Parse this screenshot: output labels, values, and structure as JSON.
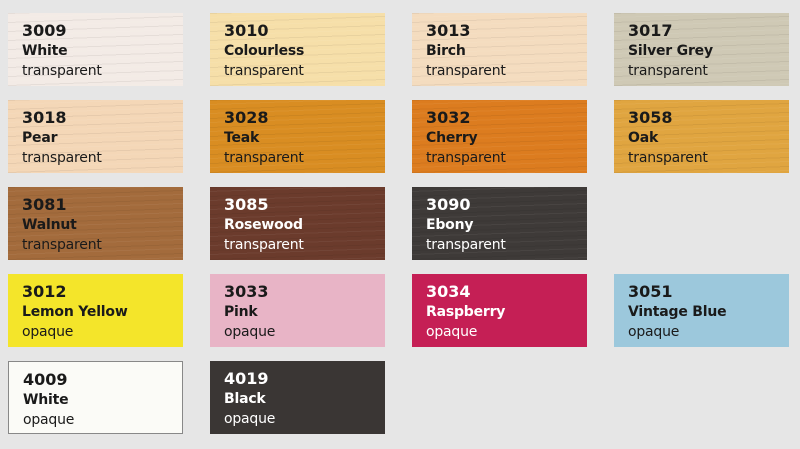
{
  "background": "#e6e6e6",
  "swatches": [
    {
      "code": "3009",
      "name": "White",
      "type": "transparent",
      "color": "#f3ebe6",
      "text": "#1a1a1a",
      "wood": true
    },
    {
      "code": "3010",
      "name": "Colourless",
      "type": "transparent",
      "color": "#f6dfa9",
      "text": "#1a1a1a",
      "wood": true
    },
    {
      "code": "3013",
      "name": "Birch",
      "type": "transparent",
      "color": "#f4dcbf",
      "text": "#1a1a1a",
      "wood": true
    },
    {
      "code": "3017",
      "name": "Silver Grey",
      "type": "transparent",
      "color": "#cfc9b5",
      "text": "#1a1a1a",
      "wood": true
    },
    {
      "code": "3018",
      "name": "Pear",
      "type": "transparent",
      "color": "#f4d7b7",
      "text": "#1a1a1a",
      "wood": true
    },
    {
      "code": "3028",
      "name": "Teak",
      "type": "transparent",
      "color": "#d98d22",
      "text": "#1a1a1a",
      "wood": true
    },
    {
      "code": "3032",
      "name": "Cherry",
      "type": "transparent",
      "color": "#dc7c1f",
      "text": "#1a1a1a",
      "wood": true
    },
    {
      "code": "3058",
      "name": "Oak",
      "type": "transparent",
      "color": "#e0a540",
      "text": "#1a1a1a",
      "wood": true
    },
    {
      "code": "3081",
      "name": "Walnut",
      "type": "transparent",
      "color": "#a36b3c",
      "text": "#1a1a1a",
      "wood": true
    },
    {
      "code": "3085",
      "name": "Rosewood",
      "type": "transparent",
      "color": "#6b3b2c",
      "text": "#ffffff",
      "wood": true
    },
    {
      "code": "3090",
      "name": "Ebony",
      "type": "transparent",
      "color": "#3e3a38",
      "text": "#ffffff",
      "wood": true
    },
    {
      "code": "",
      "name": "",
      "type": "",
      "color": "transparent",
      "text": "#1a1a1a",
      "wood": false,
      "empty": true
    },
    {
      "code": "3012",
      "name": "Lemon Yellow",
      "type": "opaque",
      "color": "#f4e52a",
      "text": "#1a1a1a",
      "wood": false
    },
    {
      "code": "3033",
      "name": "Pink",
      "type": "opaque",
      "color": "#e8b4c6",
      "text": "#1a1a1a",
      "wood": false
    },
    {
      "code": "3034",
      "name": "Raspberry",
      "type": "opaque",
      "color": "#c51f55",
      "text": "#ffffff",
      "wood": false
    },
    {
      "code": "3051",
      "name": "Vintage Blue",
      "type": "opaque",
      "color": "#9cc8dc",
      "text": "#1a1a1a",
      "wood": false
    },
    {
      "code": "4009",
      "name": "White",
      "type": "opaque",
      "color": "#fbfbf7",
      "text": "#1a1a1a",
      "wood": false,
      "border": true
    },
    {
      "code": "4019",
      "name": "Black",
      "type": "opaque",
      "color": "#3a3634",
      "text": "#ffffff",
      "wood": false
    }
  ]
}
